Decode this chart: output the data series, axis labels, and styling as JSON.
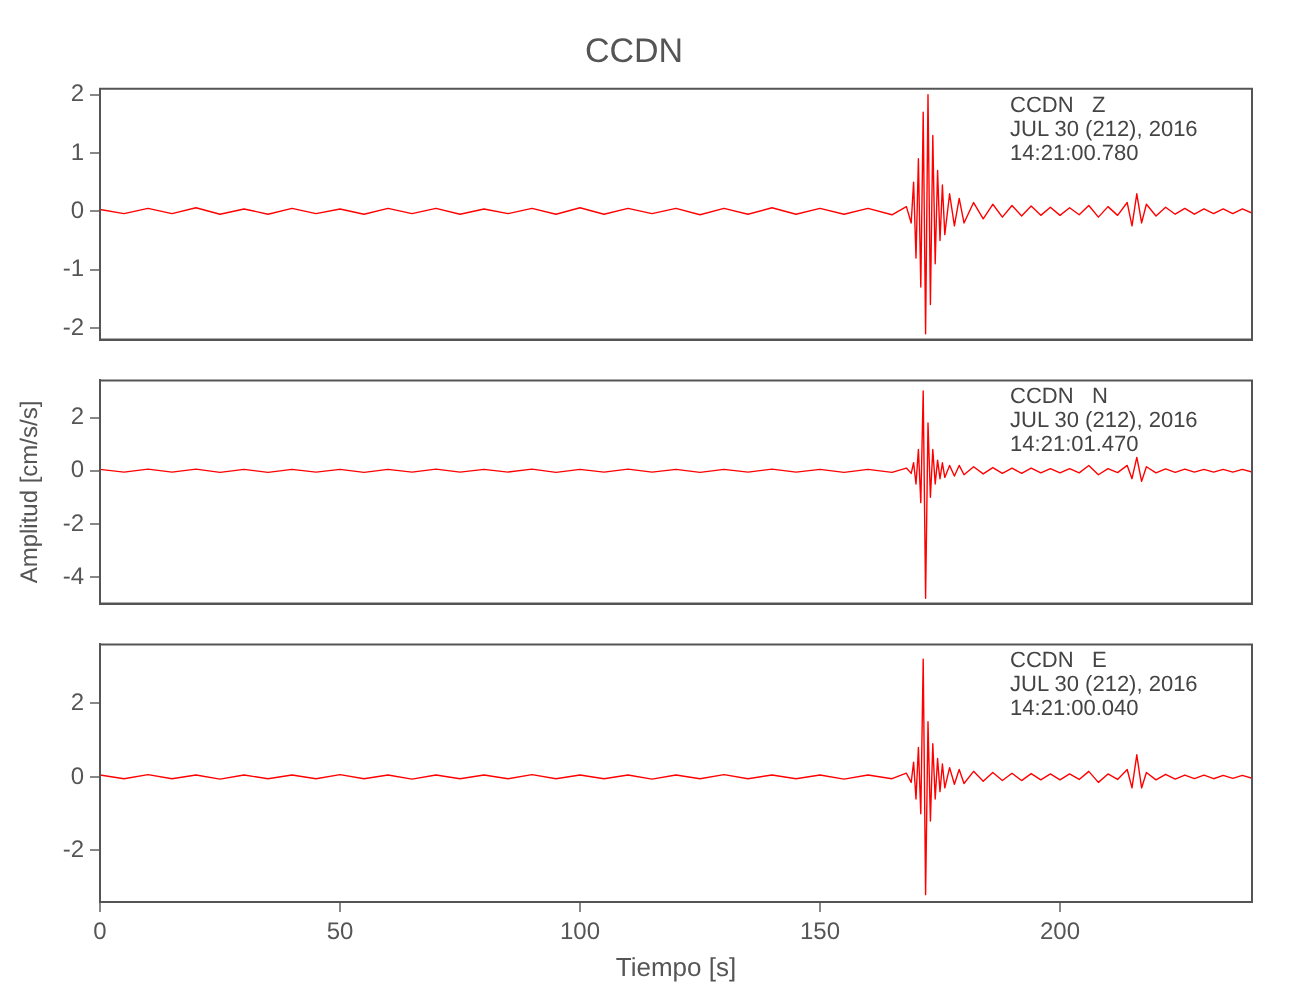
{
  "chart_data": [
    {
      "type": "line",
      "title": "CCDN",
      "tick_labels": "y",
      "xlim": [
        0,
        240
      ],
      "ylim": [
        -2.2,
        2.1
      ],
      "yticks": [
        -2,
        -1,
        0,
        1,
        2
      ],
      "grid": false,
      "legend": false,
      "marker": "none",
      "annotations": [
        "CCDN   Z",
        "JUL 30 (212), 2016",
        "14:21:00.780"
      ],
      "x": [
        0,
        5,
        10,
        15,
        20,
        25,
        30,
        35,
        40,
        45,
        50,
        55,
        60,
        65,
        70,
        75,
        80,
        85,
        90,
        95,
        100,
        105,
        110,
        115,
        120,
        125,
        130,
        135,
        140,
        145,
        150,
        155,
        160,
        165,
        168,
        169,
        169.5,
        170,
        170.5,
        171,
        171.5,
        172,
        172.5,
        173,
        173.5,
        174,
        174.5,
        175,
        175.5,
        176,
        177,
        178,
        179,
        180,
        182,
        184,
        186,
        188,
        190,
        192,
        194,
        196,
        198,
        200,
        202,
        204,
        206,
        208,
        210,
        212,
        214,
        215,
        216,
        217,
        218,
        220,
        222,
        224,
        226,
        228,
        230,
        232,
        234,
        236,
        238,
        240
      ],
      "series": [
        {
          "color": "#ff0000",
          "values": [
            0.03,
            -0.04,
            0.05,
            -0.04,
            0.06,
            -0.05,
            0.04,
            -0.05,
            0.05,
            -0.04,
            0.04,
            -0.05,
            0.05,
            -0.04,
            0.05,
            -0.05,
            0.04,
            -0.04,
            0.05,
            -0.05,
            0.06,
            -0.05,
            0.05,
            -0.04,
            0.05,
            -0.06,
            0.05,
            -0.05,
            0.06,
            -0.05,
            0.05,
            -0.05,
            0.05,
            -0.06,
            0.08,
            -0.2,
            0.5,
            -0.8,
            0.9,
            -1.3,
            1.7,
            -2.1,
            2.0,
            -1.6,
            1.3,
            -0.9,
            0.7,
            -0.5,
            0.45,
            -0.4,
            0.3,
            -0.25,
            0.22,
            -0.2,
            0.15,
            -0.13,
            0.12,
            -0.1,
            0.1,
            -0.08,
            0.09,
            -0.07,
            0.07,
            -0.07,
            0.06,
            -0.06,
            0.1,
            -0.1,
            0.08,
            -0.07,
            0.15,
            -0.25,
            0.3,
            -0.2,
            0.12,
            -0.08,
            0.07,
            -0.05,
            0.05,
            -0.05,
            0.04,
            -0.04,
            0.04,
            -0.04,
            0.04,
            -0.03
          ]
        }
      ]
    },
    {
      "type": "line",
      "ylabel": "Amplitud [cm/s/s]",
      "tick_labels": "y",
      "xlim": [
        0,
        240
      ],
      "ylim": [
        -5,
        3.4
      ],
      "yticks": [
        -4,
        -2,
        0,
        2
      ],
      "grid": false,
      "legend": false,
      "marker": "none",
      "annotations": [
        "CCDN   N",
        "JUL 30 (212), 2016",
        "14:21:01.470"
      ],
      "x": [
        0,
        5,
        10,
        15,
        20,
        25,
        30,
        35,
        40,
        45,
        50,
        55,
        60,
        65,
        70,
        75,
        80,
        85,
        90,
        95,
        100,
        105,
        110,
        115,
        120,
        125,
        130,
        135,
        140,
        145,
        150,
        155,
        160,
        165,
        168,
        169,
        169.5,
        170,
        170.5,
        171,
        171.5,
        172,
        172.5,
        173,
        173.5,
        174,
        174.5,
        175,
        175.5,
        176,
        177,
        178,
        179,
        180,
        182,
        184,
        186,
        188,
        190,
        192,
        194,
        196,
        198,
        200,
        202,
        204,
        206,
        208,
        210,
        212,
        214,
        215,
        216,
        217,
        218,
        220,
        222,
        224,
        226,
        228,
        230,
        232,
        234,
        236,
        238,
        240
      ],
      "series": [
        {
          "color": "#ff0000",
          "values": [
            0.05,
            -0.05,
            0.06,
            -0.05,
            0.06,
            -0.06,
            0.05,
            -0.06,
            0.05,
            -0.05,
            0.05,
            -0.06,
            0.05,
            -0.05,
            0.06,
            -0.05,
            0.05,
            -0.05,
            0.06,
            -0.06,
            0.05,
            -0.05,
            0.06,
            -0.05,
            0.05,
            -0.06,
            0.05,
            -0.05,
            0.06,
            -0.05,
            0.05,
            -0.06,
            0.05,
            -0.06,
            0.1,
            -0.1,
            0.3,
            -0.5,
            0.8,
            -1.2,
            3.0,
            -4.8,
            1.8,
            -1.0,
            0.8,
            -0.5,
            0.4,
            -0.3,
            0.3,
            -0.25,
            0.2,
            -0.2,
            0.2,
            -0.15,
            0.15,
            -0.12,
            0.12,
            -0.1,
            0.1,
            -0.1,
            0.1,
            -0.08,
            0.08,
            -0.08,
            0.08,
            -0.08,
            0.2,
            -0.15,
            0.08,
            -0.07,
            0.2,
            -0.3,
            0.5,
            -0.4,
            0.15,
            -0.08,
            0.07,
            -0.06,
            0.06,
            -0.05,
            0.05,
            -0.05,
            0.05,
            -0.05,
            0.05,
            -0.05
          ]
        }
      ]
    },
    {
      "type": "line",
      "xlabel": "Tiempo [s]",
      "xlim": [
        0,
        240
      ],
      "ylim": [
        -3.4,
        3.6
      ],
      "xticks": [
        0,
        50,
        100,
        150,
        200
      ],
      "yticks": [
        -2,
        0,
        2
      ],
      "grid": false,
      "legend": false,
      "marker": "none",
      "annotations": [
        "CCDN   E",
        "JUL 30 (212), 2016",
        "14:21:00.040"
      ],
      "x": [
        0,
        5,
        10,
        15,
        20,
        25,
        30,
        35,
        40,
        45,
        50,
        55,
        60,
        65,
        70,
        75,
        80,
        85,
        90,
        95,
        100,
        105,
        110,
        115,
        120,
        125,
        130,
        135,
        140,
        145,
        150,
        155,
        160,
        165,
        168,
        169,
        169.5,
        170,
        170.5,
        171,
        171.5,
        172,
        172.5,
        173,
        173.5,
        174,
        174.5,
        175,
        175.5,
        176,
        177,
        178,
        179,
        180,
        182,
        184,
        186,
        188,
        190,
        192,
        194,
        196,
        198,
        200,
        202,
        204,
        206,
        208,
        210,
        212,
        214,
        215,
        216,
        217,
        218,
        220,
        222,
        224,
        226,
        228,
        230,
        232,
        234,
        236,
        238,
        240
      ],
      "series": [
        {
          "color": "#ff0000",
          "values": [
            0.05,
            -0.05,
            0.06,
            -0.05,
            0.05,
            -0.06,
            0.05,
            -0.05,
            0.05,
            -0.05,
            0.06,
            -0.05,
            0.05,
            -0.06,
            0.05,
            -0.05,
            0.05,
            -0.05,
            0.06,
            -0.05,
            0.05,
            -0.05,
            0.05,
            -0.06,
            0.05,
            -0.05,
            0.06,
            -0.05,
            0.05,
            -0.05,
            0.05,
            -0.06,
            0.05,
            -0.05,
            0.1,
            -0.15,
            0.4,
            -0.6,
            0.8,
            -1.0,
            3.2,
            -3.2,
            1.5,
            -1.2,
            0.9,
            -0.6,
            0.5,
            -0.4,
            0.35,
            -0.3,
            0.25,
            -0.2,
            0.2,
            -0.18,
            0.15,
            -0.12,
            0.12,
            -0.1,
            0.1,
            -0.1,
            0.09,
            -0.08,
            0.08,
            -0.08,
            0.08,
            -0.07,
            0.15,
            -0.15,
            0.08,
            -0.07,
            0.2,
            -0.3,
            0.6,
            -0.3,
            0.12,
            -0.08,
            0.07,
            -0.06,
            0.05,
            -0.05,
            0.05,
            -0.05,
            0.04,
            -0.04,
            0.04,
            -0.04
          ]
        }
      ]
    }
  ]
}
